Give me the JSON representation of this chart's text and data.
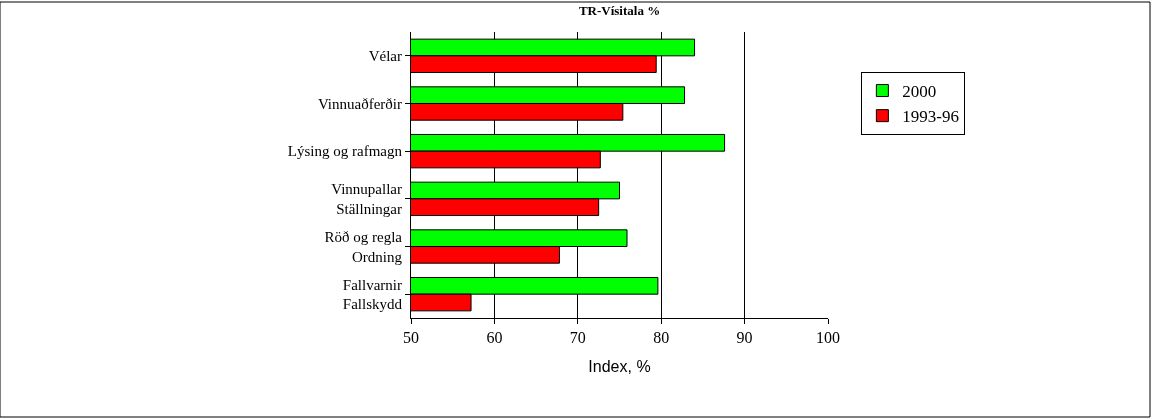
{
  "chart_data": {
    "type": "bar",
    "orientation": "horizontal",
    "title": "TR-Vísitala %",
    "xlabel": "Index, %",
    "categories": [
      "Vélar",
      "Vinnuaðferðir",
      "Lýsing og rafmagn",
      "Vinnupallar\nStällningar",
      "Röð og regla\nOrdning",
      "Fallvarnir\nFallskydd"
    ],
    "series": [
      {
        "name": "2000",
        "color": "#00ff00",
        "values": [
          84.0,
          82.8,
          87.6,
          75.0,
          75.9,
          79.6
        ]
      },
      {
        "name": "1993-96",
        "color": "#ff0000",
        "values": [
          79.4,
          75.4,
          72.7,
          72.5,
          67.8,
          57.2
        ]
      }
    ],
    "xlim": [
      50,
      100
    ],
    "xticks": [
      50,
      60,
      70,
      80,
      90,
      100
    ],
    "grid": "x",
    "legend": "right"
  }
}
